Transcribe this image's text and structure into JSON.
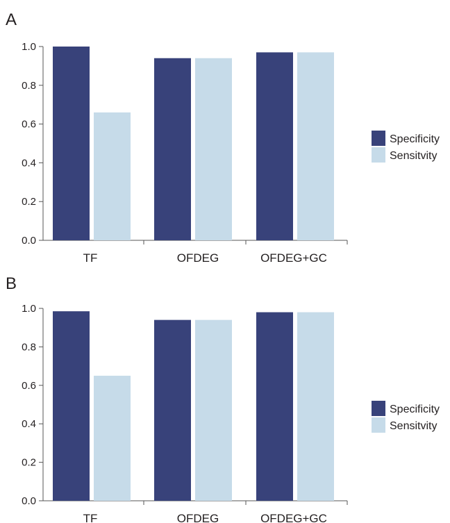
{
  "colors": {
    "specificity": "#38427a",
    "sensitivity": "#c6dbe9",
    "axis": "#555555",
    "text": "#231f20"
  },
  "legend": {
    "placement": "right",
    "entries": [
      "Specificity",
      "Sensitvity"
    ]
  },
  "chart_data": [
    {
      "panel": "A",
      "type": "bar",
      "categories": [
        "TF",
        "OFDEG",
        "OFDEG+GC"
      ],
      "series": [
        {
          "name": "Specificity",
          "values": [
            1.0,
            0.94,
            0.97
          ]
        },
        {
          "name": "Sensitvity",
          "values": [
            0.66,
            0.94,
            0.97
          ]
        }
      ],
      "yticks": [
        "0.0",
        "0.2",
        "0.4",
        "0.6",
        "0.8",
        "1.0"
      ],
      "ylim": [
        0,
        1
      ],
      "grid": false
    },
    {
      "panel": "B",
      "type": "bar",
      "categories": [
        "TF",
        "OFDEG",
        "OFDEG+GC"
      ],
      "series": [
        {
          "name": "Specificity",
          "values": [
            0.985,
            0.94,
            0.98
          ]
        },
        {
          "name": "Sensitvity",
          "values": [
            0.65,
            0.94,
            0.98
          ]
        }
      ],
      "yticks": [
        "0.0",
        "0.2",
        "0.4",
        "0.6",
        "0.8",
        "1.0"
      ],
      "ylim": [
        0,
        1
      ],
      "grid": false
    }
  ]
}
